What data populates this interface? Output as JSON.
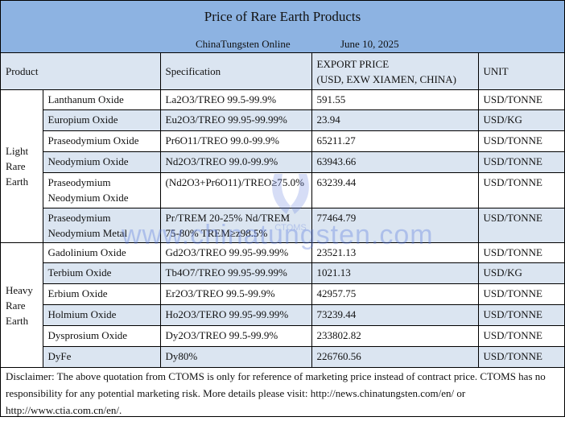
{
  "header": {
    "title": "Price of Rare Earth Products",
    "source": "ChinaTungsten Online",
    "date": "June 10, 2025"
  },
  "columns": {
    "product": "Product",
    "specification": "Specification",
    "price_line1": "EXPORT PRICE",
    "price_line2": "(USD, EXW XIAMEN, CHINA)",
    "unit": "UNIT"
  },
  "groups": [
    {
      "label": "Light Rare Earth",
      "rows": [
        {
          "product": "Lanthanum Oxide",
          "spec": "La2O3/TREO 99.5-99.9%",
          "price": "591.55",
          "unit": "USD/TONNE"
        },
        {
          "product": "Europium Oxide",
          "spec": "Eu2O3/TREO 99.95-99.99%",
          "price": "23.94",
          "unit": "USD/KG"
        },
        {
          "product": "Praseodymium Oxide",
          "spec": "Pr6O11/TREO 99.0-99.9%",
          "price": "65211.27",
          "unit": "USD/TONNE"
        },
        {
          "product": "Neodymium Oxide",
          "spec": "Nd2O3/TREO 99.0-99.9%",
          "price": "63943.66",
          "unit": "USD/TONNE"
        },
        {
          "product": "Praseodymium Neodymium Oxide",
          "spec": "(Nd2O3+Pr6O11)/TREO≥75.0%",
          "price": "63239.44",
          "unit": "USD/TONNE"
        },
        {
          "product": "Praseodymium Neodymium Metal",
          "spec": "Pr/TREM 20-25% Nd/TREM 75-80% TREM≥z98.5%",
          "price": "77464.79",
          "unit": "USD/TONNE"
        }
      ]
    },
    {
      "label": "Heavy Rare Earth",
      "rows": [
        {
          "product": "Gadolinium Oxide",
          "spec": "Gd2O3/TREO 99.95-99.99%",
          "price": "23521.13",
          "unit": "USD/TONNE"
        },
        {
          "product": "Terbium Oxide",
          "spec": "Tb4O7/TREO 99.95-99.99%",
          "price": "1021.13",
          "unit": "USD/KG"
        },
        {
          "product": "Erbium Oxide",
          "spec": "Er2O3/TREO 99.5-99.9%",
          "price": "42957.75",
          "unit": "USD/TONNE"
        },
        {
          "product": "Holmium Oxide",
          "spec": "Ho2O3/TERO 99.95-99.99%",
          "price": "73239.44",
          "unit": "USD/TONNE"
        },
        {
          "product": "Dysprosium Oxide",
          "spec": "Dy2O3/TREO 99.5-99.9%",
          "price": "233802.82",
          "unit": "USD/TONNE"
        },
        {
          "product": "DyFe",
          "spec": "Dy80%",
          "price": "226760.56",
          "unit": "USD/TONNE"
        }
      ]
    }
  ],
  "disclaimer": "Disclaimer: The above quotation from CTOMS is only for reference of marketing price instead of contract price. CTOMS has no responsibility for any potential marketing risk. More details please visit:    http://news.chinatungsten.com/en/ or http://www.ctia.com.cn/en/.",
  "watermark": {
    "text": "www.chinatungsten.com",
    "logo_text": "CTOMS"
  },
  "colors": {
    "title_bg": "#8db3e2",
    "row_alt_bg": "#dbe5f1"
  }
}
